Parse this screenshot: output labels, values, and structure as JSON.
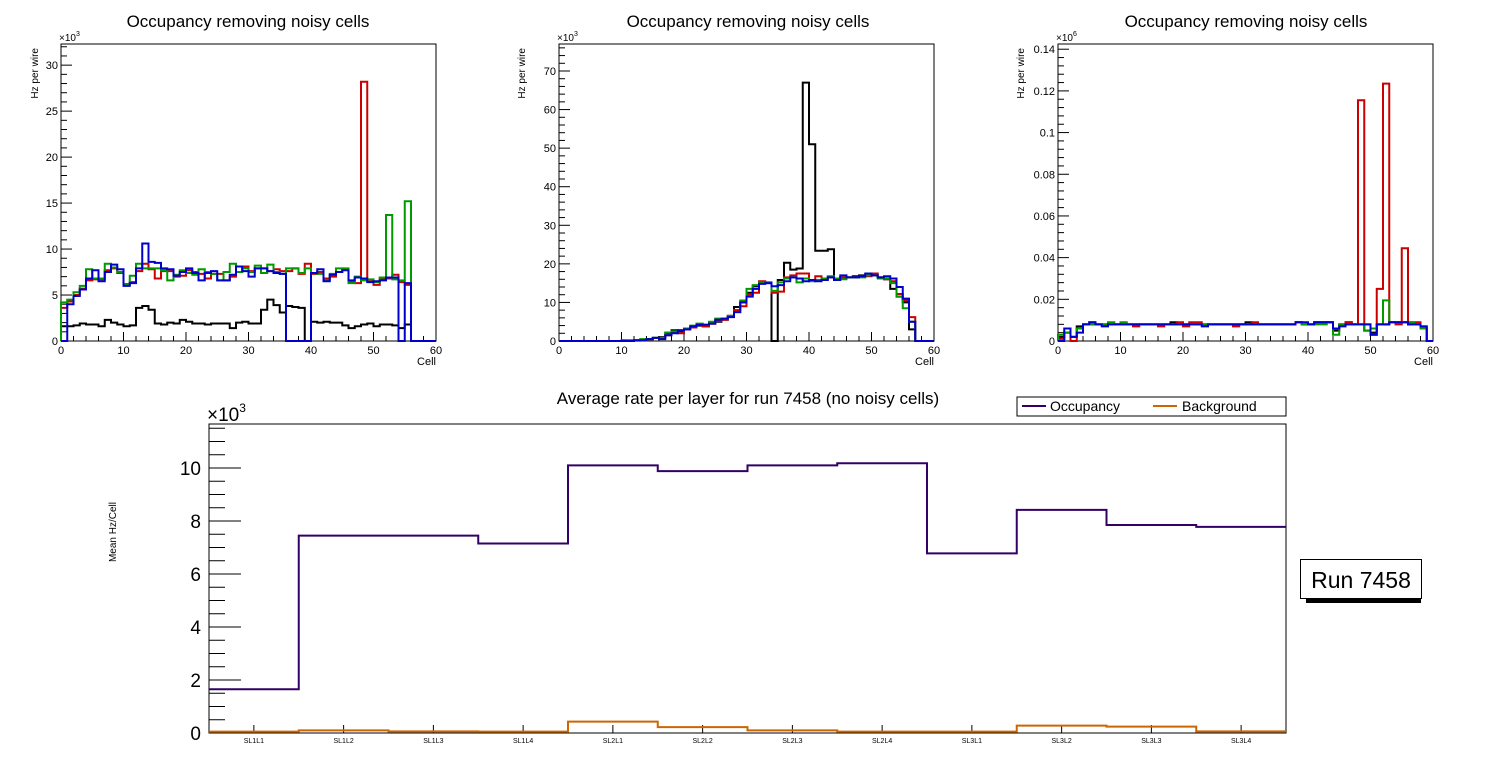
{
  "chart_data": [
    {
      "type": "line",
      "subtype": "step-histogram",
      "title": "Occupancy removing noisy cells",
      "xlabel": "Cell",
      "ylabel": "Hz per wire",
      "y_multiplier": "×10³",
      "y_multiplier_exp": "3",
      "xlim": [
        0,
        60
      ],
      "ylim": [
        0,
        32.3
      ],
      "xticks": [
        0,
        10,
        20,
        30,
        40,
        50,
        60
      ],
      "yticks": [
        0,
        5,
        10,
        15,
        20,
        25,
        30
      ],
      "grid": false,
      "series": [
        {
          "name": "layer-black",
          "color": "#000000",
          "values": [
            1.6,
            1.6,
            1.7,
            1.9,
            1.8,
            1.8,
            1.6,
            2.3,
            2.0,
            1.8,
            1.6,
            1.7,
            3.6,
            3.8,
            3.4,
            1.9,
            1.8,
            2.0,
            1.9,
            2.3,
            2.1,
            1.9,
            1.9,
            1.8,
            1.9,
            1.9,
            1.9,
            1.4,
            2.0,
            2.1,
            1.9,
            1.9,
            3.4,
            4.5,
            3.9,
            3.1,
            3.8,
            3.7,
            3.6,
            0,
            2.1,
            2.0,
            2.1,
            2.0,
            2.0,
            1.7,
            1.4,
            1.6,
            1.8,
            1.9,
            1.6,
            1.8,
            1.8,
            1.7,
            1.4,
            1.8,
            0,
            0,
            0,
            0
          ]
        },
        {
          "name": "layer-red",
          "color": "#cc0000",
          "values": [
            3.6,
            4.3,
            5.0,
            5.7,
            6.6,
            6.7,
            6.7,
            7.7,
            7.9,
            7.4,
            6.1,
            6.4,
            7.6,
            8.4,
            7.8,
            6.8,
            7.6,
            7.6,
            7.0,
            7.1,
            7.7,
            7.5,
            7.3,
            6.8,
            7.3,
            7.3,
            6.6,
            7.0,
            7.5,
            8.1,
            7.6,
            7.9,
            7.9,
            7.6,
            7.8,
            7.6,
            7.6,
            7.9,
            7.3,
            8.4,
            7.3,
            7.5,
            6.8,
            7.0,
            7.5,
            7.8,
            6.4,
            6.3,
            28.2,
            6.5,
            6.1,
            6.8,
            6.8,
            7.2,
            6.4,
            6.1,
            0,
            0,
            0,
            0
          ]
        },
        {
          "name": "layer-green",
          "color": "#009900",
          "values": [
            4.2,
            4.5,
            5.3,
            6.0,
            7.8,
            6.8,
            6.8,
            8.4,
            8.0,
            7.5,
            6.2,
            7.1,
            8.4,
            7.9,
            7.9,
            7.9,
            7.7,
            6.6,
            7.2,
            7.7,
            7.4,
            7.2,
            7.8,
            7.5,
            7.3,
            6.6,
            7.5,
            8.4,
            7.5,
            7.9,
            7.5,
            8.2,
            7.4,
            8.3,
            7.5,
            7.3,
            7.9,
            7.9,
            7.4,
            7.9,
            7.4,
            7.3,
            6.6,
            7.3,
            7.9,
            7.9,
            6.3,
            7.0,
            6.6,
            6.7,
            6.4,
            6.9,
            13.7,
            6.7,
            6.6,
            15.2,
            0,
            0,
            0,
            0
          ]
        },
        {
          "name": "layer-blue",
          "color": "#0000cc",
          "values": [
            0,
            4.0,
            4.9,
            5.6,
            6.8,
            7.7,
            6.5,
            7.5,
            8.3,
            7.8,
            6.0,
            6.3,
            7.9,
            10.6,
            8.6,
            8.5,
            7.9,
            7.8,
            7.1,
            7.5,
            7.9,
            7.4,
            6.6,
            7.4,
            7.6,
            6.6,
            6.6,
            7.2,
            8.1,
            7.6,
            7.0,
            7.9,
            7.9,
            7.6,
            7.4,
            7.3,
            0,
            0,
            0,
            0,
            7.4,
            7.8,
            6.5,
            7.2,
            7.5,
            7.7,
            6.6,
            6.9,
            6.8,
            6.4,
            6.5,
            6.6,
            6.9,
            6.9,
            0,
            6.3,
            0,
            0,
            0,
            0
          ]
        }
      ]
    },
    {
      "type": "line",
      "subtype": "step-histogram",
      "title": "Occupancy removing noisy cells",
      "xlabel": "Cell",
      "ylabel": "Hz per wire",
      "y_multiplier": "×10³",
      "y_multiplier_exp": "3",
      "xlim": [
        0,
        60
      ],
      "ylim": [
        0,
        77
      ],
      "xticks": [
        0,
        10,
        20,
        30,
        40,
        50,
        60
      ],
      "yticks": [
        0,
        10,
        20,
        30,
        40,
        50,
        60,
        70
      ],
      "grid": false,
      "series": [
        {
          "name": "layer-black",
          "color": "#000000",
          "values": [
            0,
            0,
            0,
            0,
            0,
            0,
            0,
            0,
            0,
            0,
            0,
            0,
            0.1,
            0.2,
            0.5,
            0.8,
            1.0,
            2.0,
            2.8,
            2.5,
            3.2,
            3.5,
            4.0,
            3.8,
            4.5,
            5.0,
            5.5,
            6.5,
            8.8,
            10.0,
            12.5,
            14.2,
            15.3,
            15.2,
            0,
            15.8,
            20.3,
            18.5,
            18.8,
            67.0,
            51.0,
            23.4,
            23.4,
            23.8,
            16.0,
            16.5,
            16.5,
            16.8,
            17.0,
            17.2,
            17.0,
            16.5,
            16.0,
            13.5,
            11.5,
            10.0,
            3.0,
            0,
            0,
            0
          ]
        },
        {
          "name": "layer-red",
          "color": "#cc0000",
          "values": [
            0,
            0,
            0,
            0,
            0,
            0,
            0,
            0,
            0,
            0,
            0.2,
            0.2,
            0.2,
            0.3,
            0.5,
            0.8,
            0.8,
            1.5,
            2.2,
            2.0,
            3.0,
            3.5,
            4.2,
            3.8,
            4.5,
            5.2,
            5.5,
            6.5,
            8.0,
            9.0,
            12.0,
            12.5,
            15.5,
            15.0,
            12.5,
            12.8,
            16.5,
            17.0,
            17.5,
            17.5,
            15.8,
            16.8,
            15.8,
            16.5,
            16.2,
            16.5,
            16.5,
            16.5,
            16.8,
            16.8,
            17.5,
            16.5,
            16.0,
            15.5,
            12.2,
            10.5,
            6.2,
            0,
            0,
            0
          ]
        },
        {
          "name": "layer-green",
          "color": "#009900",
          "values": [
            0,
            0,
            0,
            0,
            0,
            0,
            0,
            0,
            0,
            0,
            0,
            0.1,
            0.2,
            0.5,
            0.5,
            0.8,
            0.8,
            2.2,
            2.5,
            2.8,
            3.2,
            4.0,
            4.5,
            4.2,
            5.0,
            5.8,
            5.8,
            6.5,
            7.5,
            10.5,
            13.5,
            14.5,
            15.2,
            15.2,
            13.0,
            15.2,
            16.2,
            16.5,
            15.2,
            16.2,
            15.5,
            15.8,
            16.2,
            16.8,
            16.2,
            16.0,
            16.5,
            16.5,
            16.5,
            17.0,
            17.0,
            16.2,
            16.2,
            15.0,
            11.5,
            8.5,
            5.0,
            0,
            0,
            0
          ]
        },
        {
          "name": "layer-blue",
          "color": "#0000cc",
          "values": [
            0,
            0,
            0,
            0,
            0,
            0,
            0,
            0,
            0,
            0,
            0,
            0,
            0.2,
            0.2,
            0.5,
            0.8,
            0.5,
            1.5,
            2.0,
            2.8,
            3.0,
            3.8,
            4.2,
            4.2,
            4.5,
            5.5,
            5.8,
            6.2,
            7.5,
            10.0,
            11.5,
            13.5,
            14.8,
            15.0,
            14.2,
            14.5,
            15.5,
            16.5,
            16.2,
            15.5,
            15.8,
            15.5,
            15.8,
            16.5,
            15.8,
            17.0,
            16.5,
            16.5,
            16.8,
            17.5,
            17.0,
            16.5,
            16.8,
            16.2,
            14.0,
            11.0,
            5.0,
            0,
            0,
            0
          ]
        }
      ]
    },
    {
      "type": "line",
      "subtype": "step-histogram",
      "title": "Occupancy removing noisy cells",
      "xlabel": "Cell",
      "ylabel": "Hz per wire",
      "y_multiplier": "×10⁶",
      "y_multiplier_exp": "6",
      "xlim": [
        0,
        60
      ],
      "ylim": [
        0,
        0.1425
      ],
      "xticks": [
        0,
        10,
        20,
        30,
        40,
        50,
        60
      ],
      "yticks": [
        0,
        0.02,
        0.04,
        0.06,
        0.08,
        0.1,
        0.12,
        0.14
      ],
      "ytick_labels": [
        "0",
        "0.02",
        "0.04",
        "0.06",
        "0.08",
        "0.1",
        "0.12",
        "0.14"
      ],
      "grid": false,
      "series": [
        {
          "name": "layer-black",
          "color": "#000000",
          "values": [
            0.002,
            0.004,
            0.002,
            0.007,
            0.008,
            0.008,
            0.008,
            0.008,
            0.008,
            0.008,
            0.008,
            0.008,
            0.008,
            0.008,
            0.008,
            0.008,
            0.008,
            0.008,
            0.009,
            0.008,
            0.008,
            0.008,
            0.008,
            0.008,
            0.008,
            0.008,
            0.008,
            0.008,
            0.008,
            0.008,
            0.009,
            0.008,
            0.008,
            0.008,
            0.008,
            0.008,
            0.008,
            0.008,
            0.009,
            0.008,
            0.008,
            0.009,
            0.009,
            0.009,
            0.005,
            0.008,
            0.009,
            0.008,
            0.008,
            0.005,
            0.004,
            0.008,
            0.008,
            0.009,
            0.009,
            0.009,
            0.008,
            0.008,
            0.006,
            0
          ]
        },
        {
          "name": "layer-red",
          "color": "#cc0000",
          "values": [
            0.001,
            0.004,
            0,
            0.006,
            0.008,
            0.009,
            0.008,
            0.008,
            0.008,
            0.008,
            0.008,
            0.008,
            0.007,
            0.008,
            0.008,
            0.008,
            0.007,
            0.008,
            0.008,
            0.009,
            0.007,
            0.009,
            0.009,
            0.008,
            0.008,
            0.008,
            0.008,
            0.008,
            0.007,
            0.008,
            0.008,
            0.009,
            0.008,
            0.008,
            0.008,
            0.008,
            0.008,
            0.008,
            0.009,
            0.008,
            0.008,
            0.009,
            0.009,
            0.009,
            0.006,
            0.008,
            0.009,
            0.008,
            0.1155,
            0.008,
            0.003,
            0.025,
            0.1235,
            0.009,
            0.008,
            0.0445,
            0.009,
            0.009,
            0.007,
            0
          ]
        },
        {
          "name": "layer-green",
          "color": "#009900",
          "values": [
            0.003,
            0.004,
            0.002,
            0.006,
            0.008,
            0.008,
            0.008,
            0.008,
            0.009,
            0.008,
            0.009,
            0.008,
            0.008,
            0.008,
            0.008,
            0.008,
            0.008,
            0.008,
            0.008,
            0.008,
            0.008,
            0.008,
            0.008,
            0.008,
            0.008,
            0.008,
            0.008,
            0.008,
            0.008,
            0.008,
            0.008,
            0.008,
            0.008,
            0.008,
            0.008,
            0.008,
            0.008,
            0.008,
            0.009,
            0.008,
            0.008,
            0.008,
            0.008,
            0.009,
            0.003,
            0.008,
            0.008,
            0.008,
            0.008,
            0.005,
            0.006,
            0.008,
            0.0195,
            0.009,
            0.009,
            0.009,
            0.009,
            0.008,
            0.006,
            0
          ]
        },
        {
          "name": "layer-blue",
          "color": "#0000cc",
          "values": [
            0,
            0.006,
            0.002,
            0.004,
            0.008,
            0.009,
            0.008,
            0.007,
            0.008,
            0.008,
            0.008,
            0.008,
            0.008,
            0.008,
            0.008,
            0.008,
            0.008,
            0.008,
            0.008,
            0.008,
            0.008,
            0.008,
            0.008,
            0.007,
            0.008,
            0.008,
            0.008,
            0.008,
            0.008,
            0.008,
            0.008,
            0.008,
            0.008,
            0.008,
            0.008,
            0.008,
            0.008,
            0.008,
            0.009,
            0.009,
            0.008,
            0.009,
            0.009,
            0.009,
            0.006,
            0.007,
            0.008,
            0.008,
            0.008,
            0.008,
            0.003,
            0.008,
            0.008,
            0.009,
            0.009,
            0.009,
            0.008,
            0.008,
            0.007,
            0
          ]
        }
      ]
    },
    {
      "type": "line",
      "subtype": "step-histogram",
      "title": "Average rate per layer for run 7458 (no noisy cells)",
      "xlabel": "",
      "ylabel": "Mean Hz/Cell",
      "y_multiplier": "×10³",
      "y_multiplier_exp": "3",
      "categories": [
        "SL1L1",
        "SL1L2",
        "SL1L3",
        "SL1L4",
        "SL2L1",
        "SL2L2",
        "SL2L3",
        "SL2L4",
        "SL3L1",
        "SL3L2",
        "SL3L3",
        "SL3L4"
      ],
      "ylim": [
        0,
        11.66
      ],
      "yticks": [
        0,
        2,
        4,
        6,
        8,
        10
      ],
      "grid": false,
      "legend": {
        "position": "top-right",
        "orientation": "horizontal"
      },
      "series": [
        {
          "name": "Occupancy",
          "color": "#330066",
          "values": [
            1.65,
            7.45,
            7.45,
            7.15,
            10.1,
            9.88,
            10.1,
            10.18,
            6.78,
            8.42,
            7.85,
            7.78
          ]
        },
        {
          "name": "Background",
          "color": "#cc6600",
          "values": [
            0.05,
            0.1,
            0.06,
            0.05,
            0.43,
            0.22,
            0.1,
            0.05,
            0.05,
            0.28,
            0.24,
            0.06
          ]
        }
      ],
      "annotation": "Run 7458"
    }
  ]
}
